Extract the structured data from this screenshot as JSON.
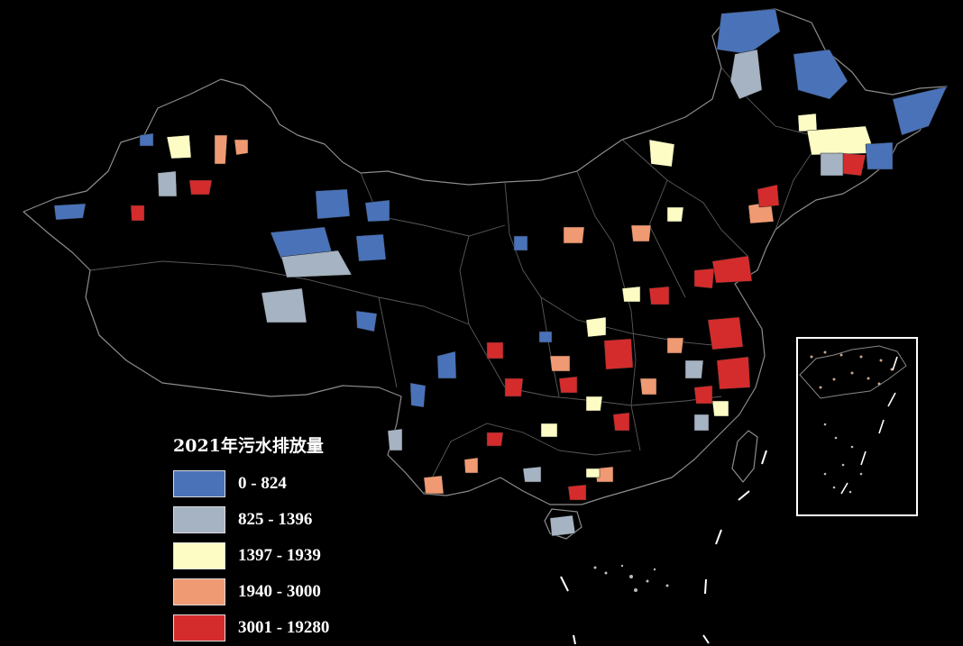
{
  "legend": {
    "title": "2021年污水排放量",
    "classes": [
      {
        "label": "0 - 824",
        "color": "#4a72b8"
      },
      {
        "label": "825 - 1396",
        "color": "#a6b3c2"
      },
      {
        "label": "1397 - 1939",
        "color": "#fcfcc4"
      },
      {
        "label": "1940 - 3000",
        "color": "#ef9a72"
      },
      {
        "label": "3001 - 19280",
        "color": "#d42c2c"
      }
    ]
  },
  "map": {
    "background": "#000000",
    "boundary_color": "#8c8c8c",
    "inset": "South China Sea islands"
  }
}
